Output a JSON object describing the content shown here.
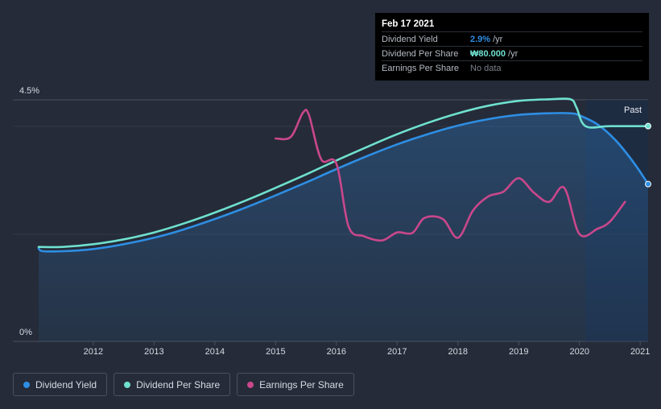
{
  "tooltip": {
    "date": "Feb 17 2021",
    "rows": [
      {
        "label": "Dividend Yield",
        "value": "2.9%",
        "unit": "/yr"
      },
      {
        "label": "Dividend Per Share",
        "value": "₩80.000",
        "unit": "/yr"
      },
      {
        "label": "Earnings Per Share",
        "value": "No data",
        "unit": ""
      }
    ]
  },
  "legend": [
    {
      "label": "Dividend Yield",
      "color": "#2e8ee3"
    },
    {
      "label": "Dividend Per Share",
      "color": "#6fe0cf"
    },
    {
      "label": "Earnings Per Share",
      "color": "#c9478b"
    }
  ],
  "chart_data": {
    "type": "line",
    "past_label": "Past",
    "y_tick_labels": [
      "4.5%",
      "0%"
    ],
    "ylim": [
      0,
      4.5
    ],
    "xlim": [
      2011.1,
      2021.13
    ],
    "x_ticks": [
      2012,
      2013,
      2014,
      2015,
      2016,
      2017,
      2018,
      2019,
      2020,
      2021
    ],
    "past_region_start": 2020.1,
    "colors": {
      "yield": "#2e8ee3",
      "dps": "#6fe0cf",
      "eps": "#c9478b"
    },
    "series": [
      {
        "name": "Dividend Yield",
        "key": "yield",
        "points": [
          [
            2011.1,
            1.73
          ],
          [
            2011.17,
            1.68
          ],
          [
            2011.5,
            1.68
          ],
          [
            2012,
            1.72
          ],
          [
            2012.5,
            1.81
          ],
          [
            2013,
            1.93
          ],
          [
            2013.5,
            2.09
          ],
          [
            2014,
            2.28
          ],
          [
            2014.5,
            2.49
          ],
          [
            2015,
            2.72
          ],
          [
            2015.5,
            2.96
          ],
          [
            2016,
            3.21
          ],
          [
            2016.5,
            3.45
          ],
          [
            2017,
            3.67
          ],
          [
            2017.5,
            3.86
          ],
          [
            2018,
            4.02
          ],
          [
            2018.5,
            4.14
          ],
          [
            2019,
            4.22
          ],
          [
            2019.5,
            4.25
          ],
          [
            2019.85,
            4.25
          ],
          [
            2020,
            4.21
          ],
          [
            2020.3,
            4.04
          ],
          [
            2020.6,
            3.74
          ],
          [
            2020.9,
            3.32
          ],
          [
            2021.13,
            2.93
          ]
        ],
        "fill": true
      },
      {
        "name": "Dividend Per Share",
        "key": "dps",
        "points": [
          [
            2011.1,
            1.76
          ],
          [
            2011.5,
            1.76
          ],
          [
            2012,
            1.81
          ],
          [
            2012.5,
            1.9
          ],
          [
            2013,
            2.03
          ],
          [
            2013.5,
            2.2
          ],
          [
            2014,
            2.4
          ],
          [
            2014.5,
            2.62
          ],
          [
            2015,
            2.86
          ],
          [
            2015.5,
            3.11
          ],
          [
            2016,
            3.37
          ],
          [
            2016.5,
            3.62
          ],
          [
            2017,
            3.86
          ],
          [
            2017.5,
            4.07
          ],
          [
            2018,
            4.25
          ],
          [
            2018.5,
            4.39
          ],
          [
            2019,
            4.48
          ],
          [
            2019.5,
            4.51
          ],
          [
            2019.85,
            4.51
          ],
          [
            2019.95,
            4.36
          ],
          [
            2020.1,
            4.01
          ],
          [
            2020.5,
            4.01
          ],
          [
            2021.13,
            4.01
          ]
        ]
      },
      {
        "name": "Earnings Per Share",
        "key": "eps",
        "points": [
          [
            2015.0,
            3.78
          ],
          [
            2015.25,
            3.81
          ],
          [
            2015.45,
            4.26
          ],
          [
            2015.55,
            4.21
          ],
          [
            2015.75,
            3.39
          ],
          [
            2016.0,
            3.31
          ],
          [
            2016.2,
            2.14
          ],
          [
            2016.45,
            1.96
          ],
          [
            2016.75,
            1.88
          ],
          [
            2017.0,
            2.03
          ],
          [
            2017.25,
            2.02
          ],
          [
            2017.45,
            2.3
          ],
          [
            2017.75,
            2.28
          ],
          [
            2018.0,
            1.93
          ],
          [
            2018.25,
            2.44
          ],
          [
            2018.5,
            2.7
          ],
          [
            2018.75,
            2.79
          ],
          [
            2019.0,
            3.04
          ],
          [
            2019.25,
            2.77
          ],
          [
            2019.5,
            2.6
          ],
          [
            2019.75,
            2.86
          ],
          [
            2020.0,
            2.0
          ],
          [
            2020.3,
            2.1
          ],
          [
            2020.5,
            2.23
          ],
          [
            2020.75,
            2.6
          ]
        ]
      }
    ]
  }
}
